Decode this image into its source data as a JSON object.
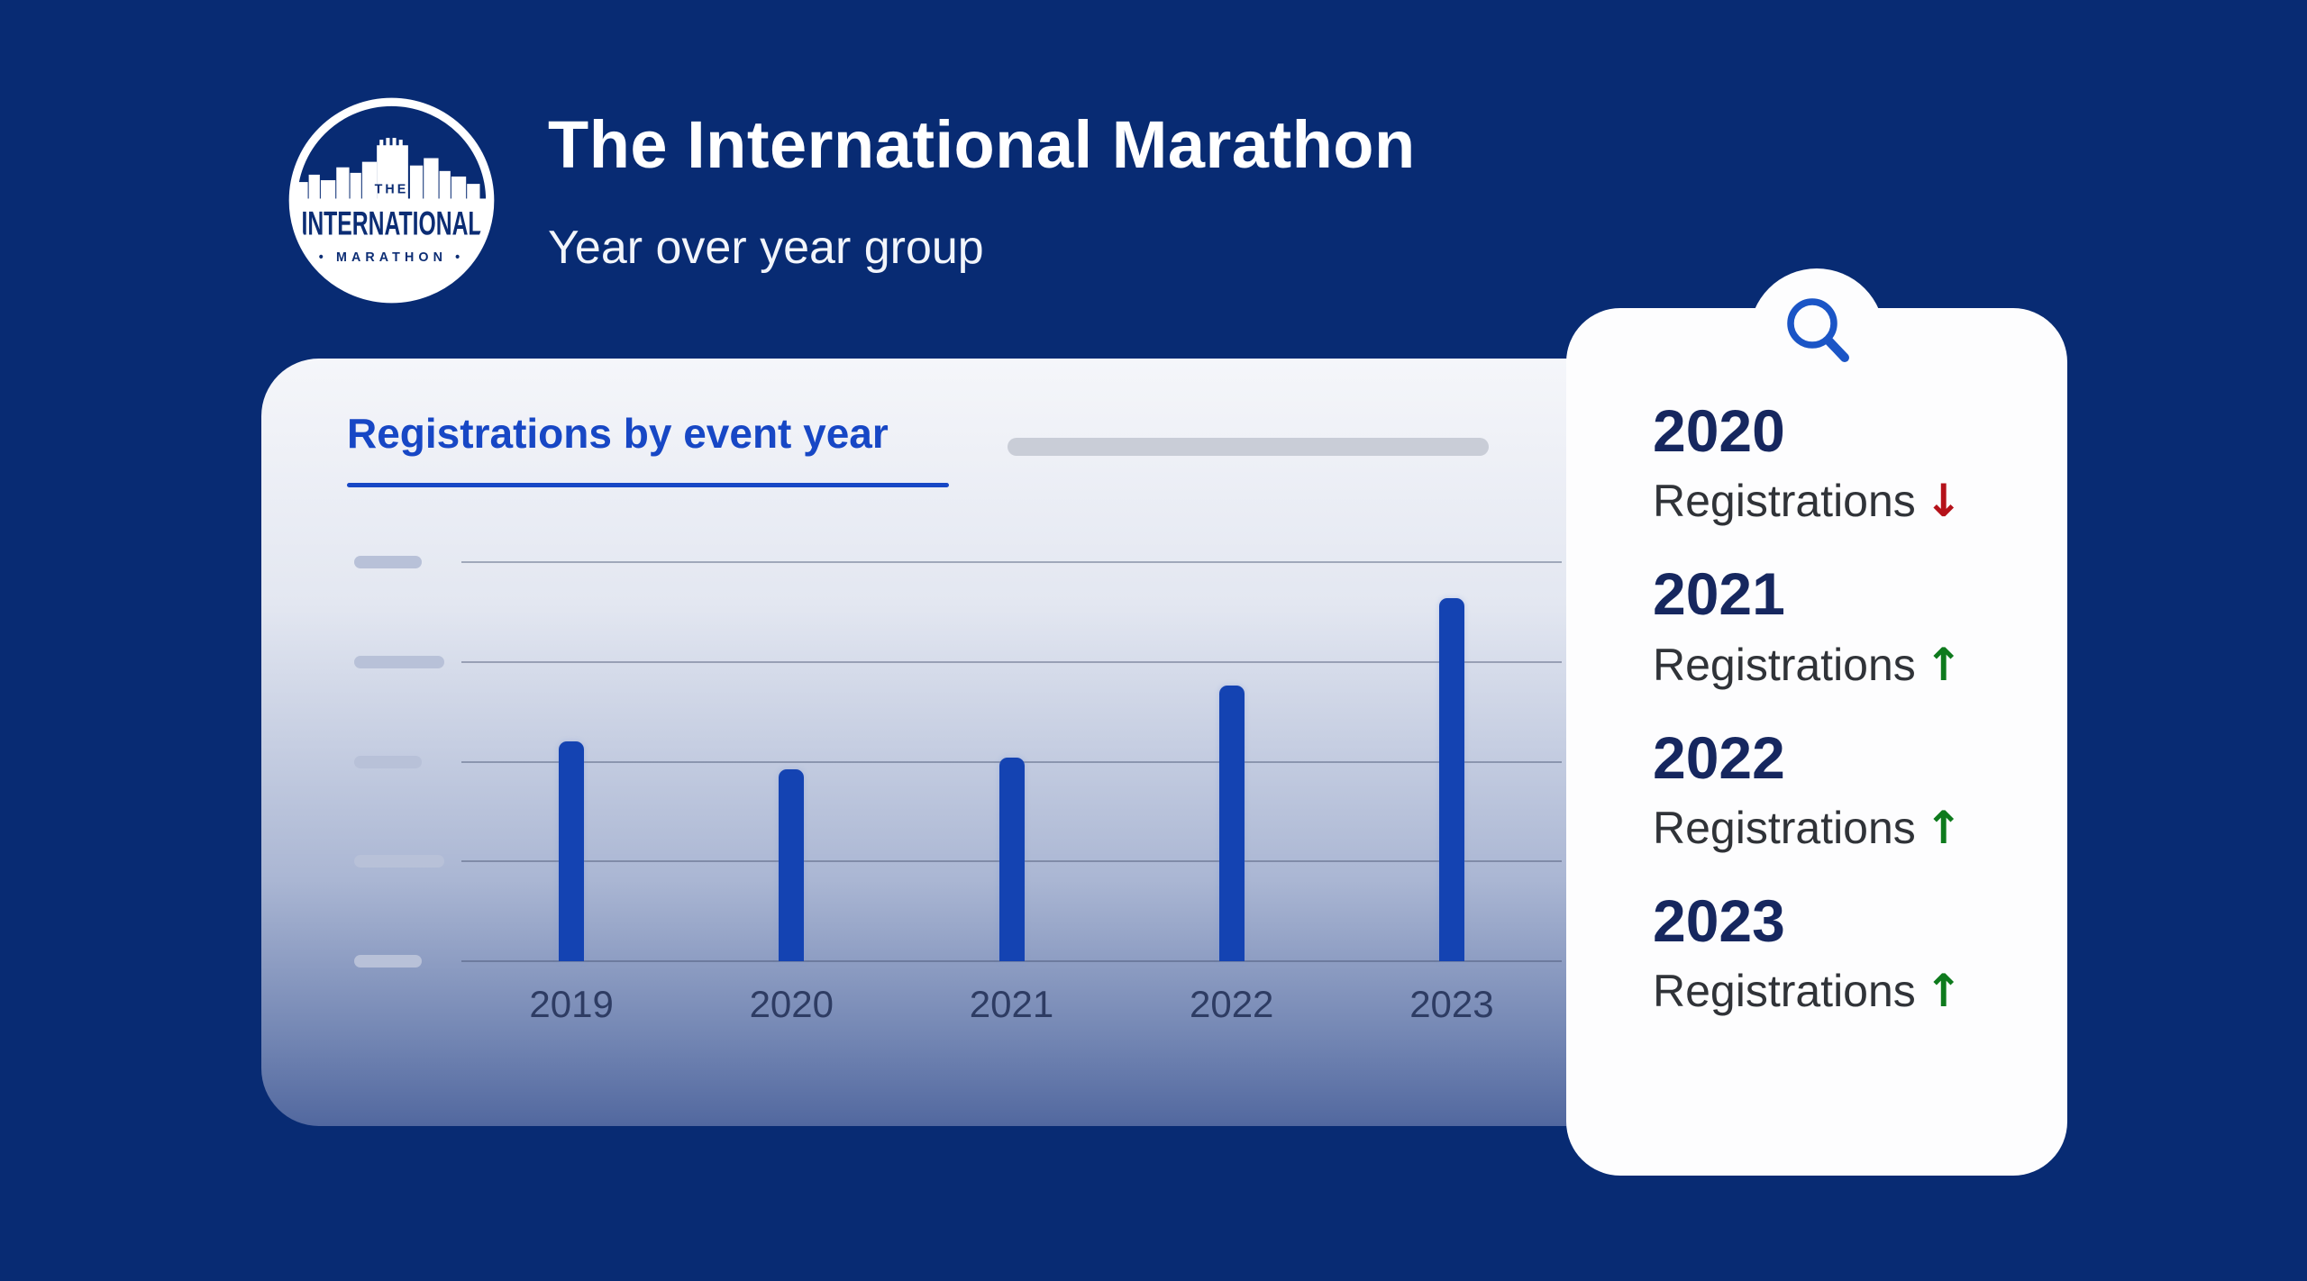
{
  "background_color": "#082b73",
  "logo": {
    "text_top": "THE",
    "text_main": "INTERNATIONAL",
    "text_bottom": "• MARATHON •"
  },
  "header": {
    "title": "The International Marathon",
    "subtitle": "Year over year group"
  },
  "panel": {
    "heading": "Registrations by event year",
    "heading_color": "#1747c5"
  },
  "chart_data": {
    "type": "bar",
    "title": "Registrations by event year",
    "categories": [
      "2019",
      "2020",
      "2021",
      "2022",
      "2023"
    ],
    "values": [
      55,
      48,
      51,
      69,
      91
    ],
    "values_note": "estimated bar heights as percent of plot height; no numeric axis labels are shown in the image",
    "xlabel": "",
    "ylabel": "",
    "bar_color": "#1443b2",
    "gridlines": 5,
    "y_axis_tick_style": "blank pill placeholders (long, short, long, short, long)",
    "legend": "none",
    "grid": true
  },
  "card": {
    "search_icon": "magnifying-glass",
    "accent_color": "#1b55c6",
    "trend_colors": {
      "up": "#0e7a1d",
      "down": "#b5121a"
    },
    "items": [
      {
        "year": "2020",
        "label": "Registrations",
        "trend": "down",
        "arrow": "↓"
      },
      {
        "year": "2021",
        "label": "Registrations",
        "trend": "up",
        "arrow": "↑"
      },
      {
        "year": "2022",
        "label": "Registrations",
        "trend": "up",
        "arrow": "↑"
      },
      {
        "year": "2023",
        "label": "Registrations",
        "trend": "up",
        "arrow": "↑"
      }
    ]
  }
}
